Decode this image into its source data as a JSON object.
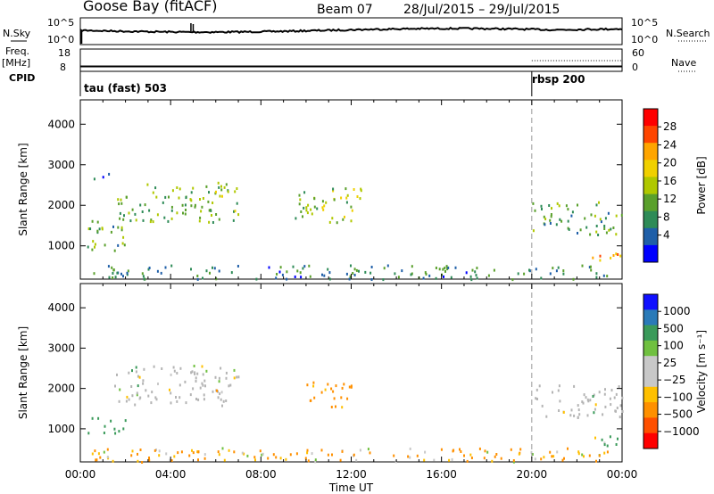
{
  "header": {
    "station": "Goose Bay (fitACF)",
    "beam": "Beam 07",
    "date_range": "28/Jul/2015 – 29/Jul/2015"
  },
  "summary_panels": {
    "noise_left_label": "N.Sky",
    "noise_right_label": "N.Search",
    "noise_ticks": [
      "10^5",
      "10^0"
    ],
    "freq_left_label_1": "Freq.",
    "freq_left_label_2": "[MHz]",
    "freq_ticks": [
      "18",
      "8"
    ],
    "nave_label": "Nave",
    "nave_ticks": [
      "60",
      "0"
    ],
    "cpid_label": "CPID",
    "cpid_segments": [
      "tau (fast) 503",
      "rbsp 200"
    ]
  },
  "chart_data": [
    {
      "type": "heatmap",
      "title": "",
      "xlabel": "",
      "ylabel": "Slant Range [km]",
      "x_ticks": [
        "00:00",
        "04:00",
        "08:00",
        "12:00",
        "16:00",
        "20:00",
        "00:00"
      ],
      "xlim_hours": [
        0,
        24
      ],
      "y_ticks": [
        1000,
        2000,
        3000,
        4000
      ],
      "ylim_km": [
        180,
        4600
      ],
      "colorbar_label": "Power [dB]",
      "colorbar_ticks": [
        "28",
        "24",
        "20",
        "16",
        "12",
        "8",
        "4"
      ],
      "colorbar_range": [
        0,
        30
      ],
      "mode_change_hour": 20,
      "echo_regions": [
        {
          "t": [
            0.3,
            2.2
          ],
          "r": [
            900,
            1700
          ],
          "value": 10
        },
        {
          "t": [
            1.5,
            7.0
          ],
          "r": [
            1600,
            2600
          ],
          "value": 12
        },
        {
          "t": [
            0.3,
            1.3
          ],
          "r": [
            2600,
            2800
          ],
          "value": 4
        },
        {
          "t": [
            9.5,
            12.5
          ],
          "r": [
            1600,
            2500
          ],
          "value": 14
        },
        {
          "t": [
            0.5,
            23.5
          ],
          "r": [
            200,
            550
          ],
          "value": 8
        },
        {
          "t": [
            20.0,
            24.0
          ],
          "r": [
            1300,
            2100
          ],
          "value": 10
        },
        {
          "t": [
            22.5,
            24.0
          ],
          "r": [
            550,
            850
          ],
          "value": 22
        }
      ]
    },
    {
      "type": "heatmap",
      "title": "",
      "xlabel": "Time UT",
      "ylabel": "Slant Range [km]",
      "x_ticks": [
        "00:00",
        "04:00",
        "08:00",
        "12:00",
        "16:00",
        "20:00",
        "00:00"
      ],
      "xlim_hours": [
        0,
        24
      ],
      "y_ticks": [
        1000,
        2000,
        3000,
        4000
      ],
      "ylim_km": [
        180,
        4600
      ],
      "colorbar_label": "Velocity [m s⁻¹]",
      "colorbar_ticks": [
        "1000",
        "500",
        "100",
        "25",
        "−25",
        "−100",
        "−500",
        "−1000"
      ],
      "mode_change_hour": 20,
      "echo_regions": [
        {
          "t": [
            0.3,
            2.0
          ],
          "r": [
            900,
            1300
          ],
          "value": 300
        },
        {
          "t": [
            1.5,
            7.0
          ],
          "r": [
            1600,
            2600
          ],
          "value": 0
        },
        {
          "t": [
            10.0,
            12.0
          ],
          "r": [
            1500,
            2200
          ],
          "value": -200
        },
        {
          "t": [
            0.5,
            23.5
          ],
          "r": [
            200,
            550
          ],
          "value": -100
        },
        {
          "t": [
            20.0,
            24.0
          ],
          "r": [
            1300,
            2100
          ],
          "value": 0
        },
        {
          "t": [
            22.5,
            24.0
          ],
          "r": [
            550,
            850
          ],
          "value": 100
        }
      ]
    }
  ],
  "colors": {
    "power_scale": [
      "#0000ff",
      "#1f5fa8",
      "#2e8b57",
      "#5aa02c",
      "#b0c800",
      "#f0d000",
      "#ffa500",
      "#ff4500",
      "#ff0000"
    ],
    "velocity_scale": [
      "#ff0000",
      "#ff5000",
      "#ff9000",
      "#ffc000",
      "#c8c8c8",
      "#c8c8c8",
      "#70c040",
      "#3a9a5a",
      "#2a7ab8",
      "#1010ff"
    ],
    "ground_scatter": "#b4b4b4"
  }
}
